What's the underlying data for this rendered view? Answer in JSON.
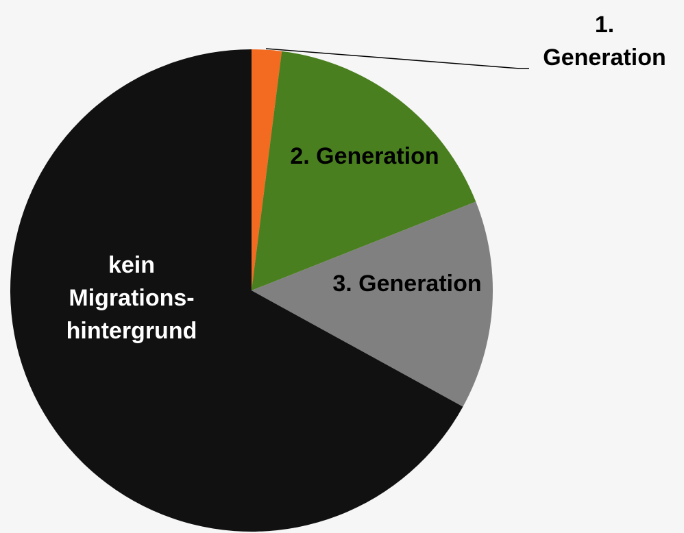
{
  "chart_data": {
    "type": "pie",
    "categories": [
      "1. Generation",
      "2. Generation",
      "3. Generation",
      "kein Migrations-hintergrund"
    ],
    "values": [
      2,
      17,
      14,
      67
    ],
    "colors": [
      "#f26b21",
      "#4a7f1f",
      "#808080",
      "#111111"
    ]
  }
}
